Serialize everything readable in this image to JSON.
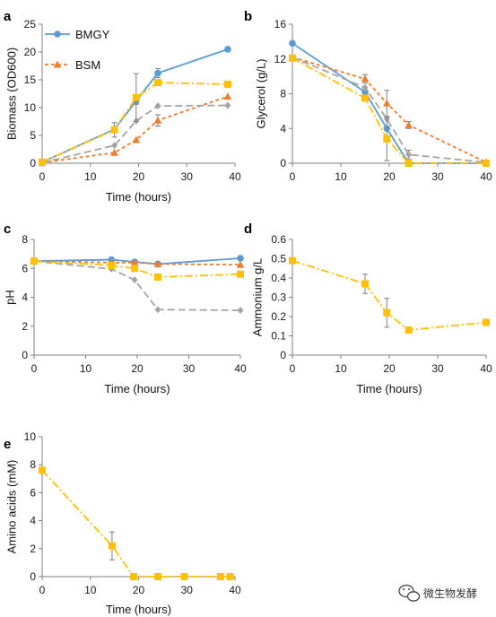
{
  "chart_data": [
    {
      "panel": "a",
      "type": "line",
      "xlabel": "Time (hours)",
      "ylabel": "Biomass (OD600)",
      "xlim": [
        0,
        40
      ],
      "ylim": [
        0,
        25
      ],
      "xticks": [
        0,
        10,
        20,
        30,
        40
      ],
      "yticks": [
        0,
        5,
        10,
        15,
        20,
        25
      ],
      "legend": {
        "position": "top-left",
        "entries": [
          "BMGY",
          "BSM"
        ]
      },
      "series": [
        {
          "name": "BMGY",
          "color": "#5B9BD5",
          "marker": "circle",
          "dash": "solid",
          "x": [
            0,
            15,
            19.5,
            24,
            38.5
          ],
          "y": [
            0.2,
            6.1,
            11.2,
            16.2,
            20.5
          ],
          "err": [
            0,
            0.4,
            0.6,
            0.8,
            0
          ]
        },
        {
          "name": "BSM",
          "color": "#ED7D31",
          "marker": "triangle",
          "dash": "dash",
          "x": [
            0,
            15,
            19.5,
            24,
            38.5
          ],
          "y": [
            0.1,
            1.9,
            4.2,
            7.7,
            12.0
          ],
          "err": [
            0,
            0,
            0,
            1.0,
            0
          ]
        },
        {
          "color": "#A5A5A5",
          "marker": "diamond",
          "dash": "longdash",
          "x": [
            0,
            15,
            19.5,
            24,
            38.5
          ],
          "y": [
            0.1,
            3.2,
            7.6,
            10.3,
            10.4
          ],
          "err": [
            0,
            0,
            0,
            0,
            0
          ]
        },
        {
          "color": "#FFC000",
          "marker": "square",
          "dash": "dashdot",
          "x": [
            0,
            15,
            19.5,
            24,
            38.5
          ],
          "y": [
            0.2,
            6.0,
            11.8,
            14.5,
            14.2
          ],
          "err": [
            0,
            1.3,
            4.3,
            0,
            0
          ]
        }
      ]
    },
    {
      "panel": "b",
      "type": "line",
      "xlabel": "",
      "ylabel": "Glycerol (g/L)",
      "xlim": [
        0,
        40
      ],
      "ylim": [
        0,
        16
      ],
      "xticks": [
        0,
        10,
        20,
        30,
        40
      ],
      "yticks": [
        0,
        4,
        8,
        12,
        16
      ],
      "series": [
        {
          "color": "#5B9BD5",
          "marker": "circle",
          "dash": "solid",
          "x": [
            0,
            15,
            19.5,
            24,
            40
          ],
          "y": [
            13.8,
            8.2,
            4.0,
            0.0,
            0.0
          ],
          "err": [
            0,
            0,
            0,
            0,
            0
          ]
        },
        {
          "color": "#ED7D31",
          "marker": "triangle",
          "dash": "dash",
          "x": [
            0,
            15,
            19.5,
            24,
            40
          ],
          "y": [
            12.2,
            9.7,
            6.9,
            4.4,
            0.1
          ],
          "err": [
            0,
            0.5,
            1.5,
            0.4,
            0
          ]
        },
        {
          "color": "#A5A5A5",
          "marker": "diamond",
          "dash": "longdash",
          "x": [
            0,
            15,
            19.5,
            24,
            40
          ],
          "y": [
            12.2,
            8.7,
            5.1,
            1.0,
            0.1
          ],
          "err": [
            0,
            0,
            0,
            0.5,
            0
          ]
        },
        {
          "color": "#FFC000",
          "marker": "square",
          "dash": "dashdot",
          "x": [
            0,
            15,
            19.5,
            24,
            40
          ],
          "y": [
            12.1,
            7.5,
            2.8,
            0.0,
            0.0
          ],
          "err": [
            0,
            0,
            2.5,
            0,
            0
          ]
        }
      ]
    },
    {
      "panel": "c",
      "type": "line",
      "xlabel": "Time (hours)",
      "ylabel": "pH",
      "xlim": [
        0,
        40
      ],
      "ylim": [
        0,
        8
      ],
      "xticks": [
        0,
        10,
        20,
        30,
        40
      ],
      "yticks": [
        0,
        2,
        4,
        6,
        8
      ],
      "series": [
        {
          "color": "#5B9BD5",
          "marker": "circle",
          "dash": "solid",
          "x": [
            0,
            15,
            19.5,
            24,
            40
          ],
          "y": [
            6.5,
            6.6,
            6.45,
            6.3,
            6.7
          ],
          "err": [
            0,
            0,
            0,
            0,
            0
          ]
        },
        {
          "color": "#ED7D31",
          "marker": "triangle",
          "dash": "dash",
          "x": [
            0,
            15,
            19.5,
            24,
            40
          ],
          "y": [
            6.5,
            6.4,
            6.4,
            6.3,
            6.25
          ],
          "err": [
            0,
            0,
            0,
            0,
            0
          ]
        },
        {
          "color": "#A5A5A5",
          "marker": "diamond",
          "dash": "longdash",
          "x": [
            0,
            15,
            19.5,
            24,
            40
          ],
          "y": [
            6.5,
            5.95,
            5.2,
            3.15,
            3.1
          ],
          "err": [
            0,
            0,
            0,
            0,
            0
          ]
        },
        {
          "color": "#FFC000",
          "marker": "square",
          "dash": "dashdot",
          "x": [
            0,
            15,
            19.5,
            24,
            40
          ],
          "y": [
            6.5,
            6.2,
            6.0,
            5.4,
            5.6
          ],
          "err": [
            0,
            0,
            0,
            0,
            0
          ]
        }
      ]
    },
    {
      "panel": "d",
      "type": "line",
      "xlabel": "Time (hours)",
      "ylabel": "Ammonium g/L",
      "xlim": [
        0,
        40
      ],
      "ylim": [
        0,
        0.6
      ],
      "xticks": [
        0,
        10,
        20,
        30,
        40
      ],
      "yticks": [
        0,
        0.1,
        0.2,
        0.3,
        0.4,
        0.5,
        0.6
      ],
      "series": [
        {
          "color": "#FFC000",
          "marker": "square",
          "dash": "dashdot",
          "x": [
            0,
            15,
            19.5,
            24,
            40
          ],
          "y": [
            0.49,
            0.37,
            0.22,
            0.13,
            0.17
          ],
          "err": [
            0,
            0.05,
            0.075,
            0,
            0
          ]
        }
      ]
    },
    {
      "panel": "e",
      "type": "line",
      "xlabel": "Time (hours)",
      "ylabel": "Amino acids (mM)",
      "xlim": [
        0,
        40
      ],
      "ylim": [
        0,
        10
      ],
      "xticks": [
        0,
        10,
        20,
        30,
        40
      ],
      "yticks": [
        0,
        2,
        4,
        6,
        8,
        10
      ],
      "series": [
        {
          "color": "#FFC000",
          "marker": "square",
          "dash": "dashdot",
          "x": [
            0,
            14.5,
            19,
            24,
            29.5,
            37,
            39
          ],
          "y": [
            7.6,
            2.2,
            0.0,
            0.0,
            0.0,
            0.0,
            0.0
          ],
          "err": [
            0,
            1.0,
            0,
            0,
            0,
            0,
            0
          ]
        }
      ]
    }
  ],
  "watermark": {
    "text": "微生物发酵",
    "icon": "wechat-icon"
  }
}
